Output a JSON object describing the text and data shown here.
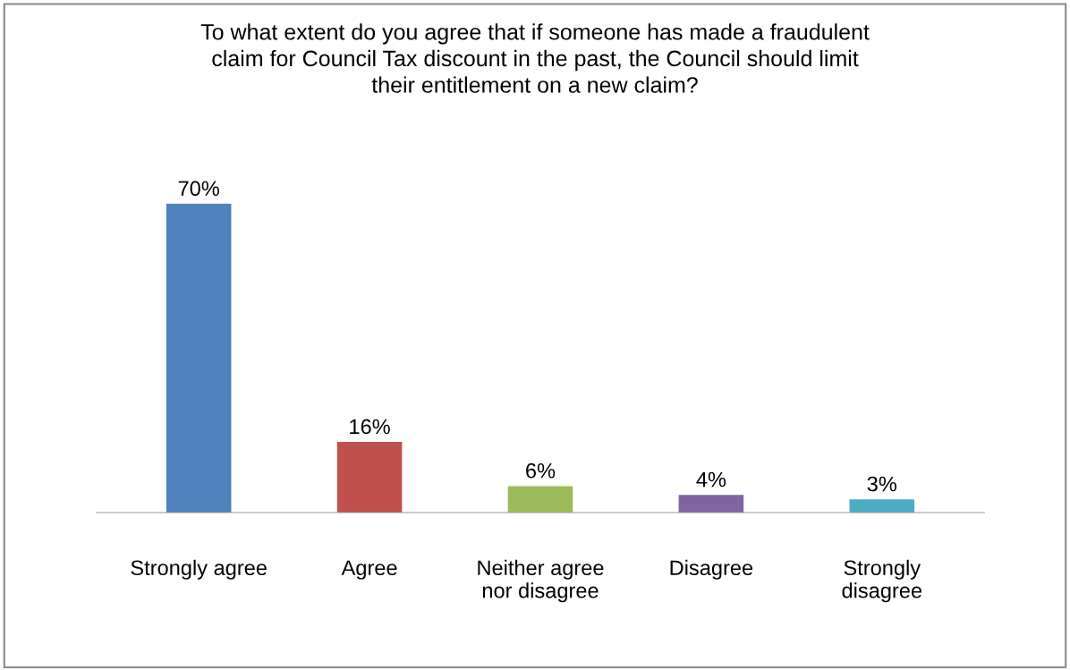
{
  "chart_data": {
    "type": "bar",
    "title": "To what extent do you agree that if someone has made a fraudulent claim for Council Tax discount in the past, the Council should limit their entitlement on a new claim?",
    "categories": [
      "Strongly agree",
      "Agree",
      "Neither agree nor disagree",
      "Disagree",
      "Strongly disagree"
    ],
    "values": [
      70,
      16,
      6,
      4,
      3
    ],
    "colors": [
      "#4f81bd",
      "#c0504d",
      "#9bbb59",
      "#8064a2",
      "#4bacc6"
    ],
    "value_labels": [
      "70%",
      "16%",
      "6%",
      "4%",
      "3%"
    ],
    "grid": false,
    "legend": false
  }
}
